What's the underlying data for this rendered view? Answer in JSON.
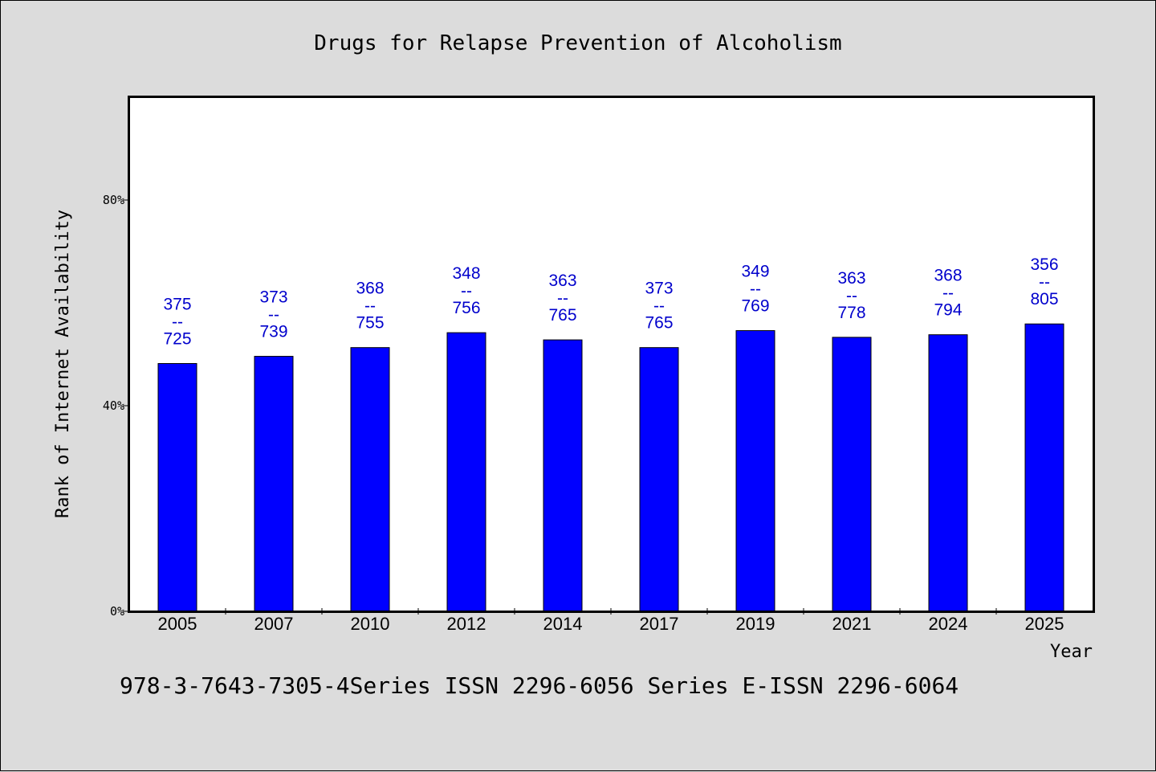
{
  "chart_data": {
    "type": "bar",
    "title": "Drugs for Relapse Prevention of Alcoholism",
    "xlabel": "Year",
    "ylabel": "Rank of Internet Availability",
    "categories": [
      "2005",
      "2007",
      "2010",
      "2012",
      "2014",
      "2017",
      "2019",
      "2021",
      "2024",
      "2025"
    ],
    "values": [
      48.2,
      49.6,
      51.3,
      54.2,
      52.8,
      51.3,
      54.6,
      53.3,
      53.8,
      55.9
    ],
    "value_unit": "%",
    "data_labels": [
      {
        "top": "375",
        "mid": "--",
        "bottom": "725"
      },
      {
        "top": "373",
        "mid": "--",
        "bottom": "739"
      },
      {
        "top": "368",
        "mid": "--",
        "bottom": "755"
      },
      {
        "top": "348",
        "mid": "--",
        "bottom": "756"
      },
      {
        "top": "363",
        "mid": "--",
        "bottom": "765"
      },
      {
        "top": "373",
        "mid": "--",
        "bottom": "765"
      },
      {
        "top": "349",
        "mid": "--",
        "bottom": "769"
      },
      {
        "top": "363",
        "mid": "--",
        "bottom": "778"
      },
      {
        "top": "368",
        "mid": "--",
        "bottom": "794"
      },
      {
        "top": "356",
        "mid": "--",
        "bottom": "805"
      }
    ],
    "ylim": [
      0,
      100
    ],
    "yticks": [
      0,
      40,
      80
    ],
    "ytick_labels": [
      "0%",
      "40%",
      "80%"
    ],
    "grid": false,
    "legend": "none",
    "colors": {
      "bar": "#0000ff",
      "bar_outline": "#000000",
      "data_label": "#0000cc",
      "plot_background": "#ffffff",
      "page_background": "#dcdcdc"
    }
  },
  "footer": {
    "text": "978-3-7643-7305-4Series ISSN 2296-6056 Series E-ISSN 2296-6064"
  }
}
